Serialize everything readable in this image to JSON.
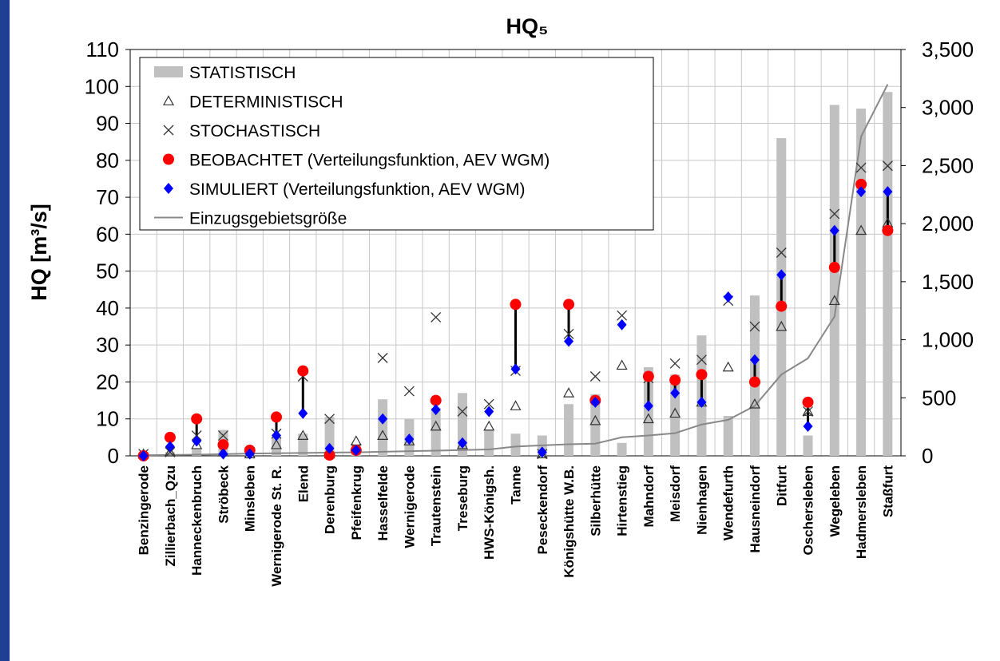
{
  "chart_data": {
    "type": "mixed",
    "title": "HQ₅",
    "y_label": "HQ [m³/s]",
    "categories": [
      "Benzingerode",
      "Zillierbach_Qzu",
      "Hanneckenbruch",
      "Ströbeck",
      "Minsleben",
      "Wernigerode St. R.",
      "Elend",
      "Derenburg",
      "Pfeifenkrug",
      "Hasselfelde",
      "Wernigerode",
      "Trautenstein",
      "Treseburg",
      "HWS-Königsh.",
      "Tanne",
      "Peseckendorf",
      "Königshütte W.B.",
      "Silberhütte",
      "Hirtenstieg",
      "Mahndorf",
      "Meisdorf",
      "Nienhagen",
      "Wendefurth",
      "Hausneindorf",
      "Ditfurt",
      "Oschersleben",
      "Wegeleben",
      "Hadmersleben",
      "Staßfurt"
    ],
    "series": [
      {
        "name": "STATISTISCH",
        "marker": "bar",
        "color": "#c0c0c0",
        "values": [
          1,
          1,
          2,
          7,
          1,
          5,
          6,
          10.5,
          3,
          15.3,
          10,
          13,
          17,
          7,
          6,
          5.5,
          14,
          16.7,
          3.5,
          24,
          22,
          32.6,
          10.8,
          43.4,
          86,
          5.5,
          95,
          94,
          98.5
        ]
      },
      {
        "name": "DETERMINISTISCH",
        "marker": "triangle",
        "color": "#333333",
        "values": [
          0.5,
          1,
          3,
          1,
          0.5,
          3,
          5.5,
          0.5,
          4,
          5.5,
          4,
          8,
          3,
          8,
          13.5,
          0.5,
          17,
          9.5,
          24.5,
          10,
          11.5,
          14.5,
          24,
          14,
          35,
          12,
          42,
          61,
          63
        ]
      },
      {
        "name": "STOCHASTISCH",
        "marker": "cross",
        "color": "#333333",
        "values": [
          0.5,
          1,
          5.5,
          5.5,
          1,
          6,
          21.5,
          10,
          2,
          26.5,
          17.5,
          37.5,
          12,
          14,
          23,
          0.5,
          33,
          21.5,
          38,
          21,
          25,
          26,
          42,
          35,
          55,
          12,
          65.5,
          78,
          78.5
        ]
      },
      {
        "name": "BEOBACHTET (Verteilungsfunktion, AEV WGM)",
        "marker": "circle",
        "color": "#ff0000",
        "values": [
          0,
          5,
          10,
          3,
          1.5,
          10.5,
          23,
          0.2,
          1.5,
          null,
          null,
          15,
          null,
          null,
          41,
          null,
          41,
          15,
          null,
          21.5,
          20.5,
          22,
          null,
          20,
          40.5,
          14.5,
          51,
          73.5,
          61
        ]
      },
      {
        "name": "SIMULIERT (Verteilungsfunktion, AEV WGM)",
        "marker": "diamond",
        "color": "#0000ff",
        "values": [
          0,
          2.5,
          4,
          0.5,
          0.5,
          5.5,
          11.5,
          2,
          1.5,
          10,
          4.5,
          12.5,
          3.5,
          12,
          23.5,
          1,
          31,
          14.5,
          35.5,
          13.5,
          17,
          14.5,
          43,
          26,
          49,
          8,
          61,
          71.5,
          71.5
        ]
      },
      {
        "name": "Einzugsgebietsgröße",
        "marker": "line",
        "color": "#888888",
        "axis": "y2",
        "values": [
          5,
          8,
          10,
          15,
          20,
          22,
          25,
          28,
          30,
          35,
          40,
          45,
          50,
          55,
          80,
          90,
          100,
          105,
          160,
          175,
          195,
          270,
          310,
          430,
          700,
          840,
          1200,
          2750,
          3200
        ]
      }
    ],
    "ylim": [
      0,
      110
    ],
    "yticks": [
      0,
      10,
      20,
      30,
      40,
      50,
      60,
      70,
      80,
      90,
      100,
      110
    ],
    "y2lim": [
      0,
      3500
    ],
    "y2ticks": [
      0,
      500,
      {
        "value": 1000,
        "label": "1,000"
      },
      {
        "value": 1500,
        "label": "1,500"
      },
      {
        "value": 2000,
        "label": "2,000"
      },
      {
        "value": 2500,
        "label": "2,500"
      },
      {
        "value": 3000,
        "label": "3,000"
      },
      {
        "value": 3500,
        "label": "3,500"
      }
    ],
    "grid": true,
    "legend": "upper left"
  }
}
